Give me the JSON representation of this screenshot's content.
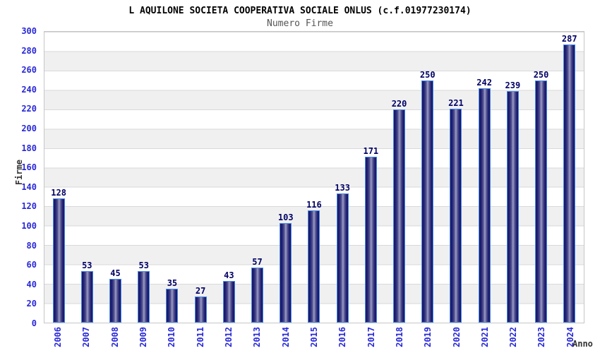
{
  "header": {
    "title": "L AQUILONE SOCIETA COOPERATIVA SOCIALE ONLUS (c.f.01977230174)",
    "subtitle": "Numero Firme"
  },
  "chart_data": {
    "type": "bar",
    "title": "L AQUILONE SOCIETA COOPERATIVA SOCIALE ONLUS (c.f.01977230174)",
    "subtitle": "Numero Firme",
    "categories": [
      "2006",
      "2007",
      "2008",
      "2009",
      "2010",
      "2011",
      "2012",
      "2013",
      "2014",
      "2015",
      "2016",
      "2017",
      "2018",
      "2019",
      "2020",
      "2021",
      "2022",
      "2023",
      "2024"
    ],
    "values": [
      128,
      53,
      45,
      53,
      35,
      27,
      43,
      57,
      103,
      116,
      133,
      171,
      220,
      250,
      221,
      242,
      239,
      250,
      287
    ],
    "xlabel": "Anno",
    "ylabel": "Firme",
    "ylim": [
      0,
      300
    ],
    "ytick_step": 20,
    "grid": "horizontal bands, alternating white / light gray, gridline every 20",
    "legend": "none",
    "colors": {
      "bar_dark": "#16165e",
      "bar_mid": "#22227a",
      "bar_highlight": "#9c9cc8",
      "bar_border": "#4a8ae8",
      "value_label": "#000066",
      "tick_label": "#2828d8",
      "axis_title": "#333333",
      "band_gray": "#f0f0f0",
      "gridline": "#d9d9d9",
      "plot_border": "#c6c6c6",
      "title_color": "#000000",
      "subtitle_color": "#555555"
    }
  }
}
